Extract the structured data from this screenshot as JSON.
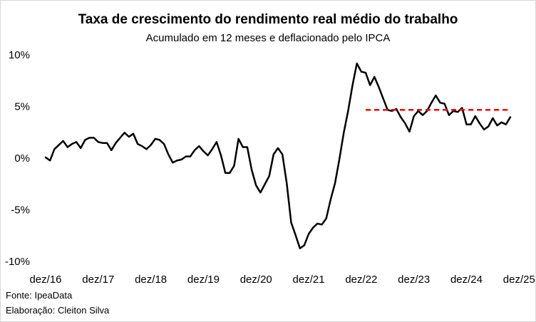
{
  "title": "Taxa de crescimento do rendimento real médio do trabalho",
  "subtitle": "Acumulado em 12 meses e deflacionado pelo IPCA",
  "footer": {
    "source": "Fonte: IpeaData",
    "credit": "Elaboração: Cleiton Silva"
  },
  "chart_data": {
    "type": "line",
    "title": "Taxa de crescimento do rendimento real médio do trabalho",
    "subtitle": "Acumulado em 12 meses e deflacionado pelo IPCA",
    "xlabel": "",
    "ylabel": "",
    "ylim": [
      -10,
      10
    ],
    "yticks": [
      10,
      5,
      0,
      -5,
      -10
    ],
    "ytick_labels": [
      "10%",
      "5%",
      "0%",
      "-5%",
      "-10%"
    ],
    "xtick_labels": [
      "dez/16",
      "dez/17",
      "dez/18",
      "dez/19",
      "dez/20",
      "dez/21",
      "dez/22",
      "dez/23",
      "dez/24",
      "dez/25"
    ],
    "x_start": "dez/16",
    "grid": false,
    "legend": "none",
    "series": [
      {
        "color": "#000000",
        "style": "solid",
        "values": [
          0.0,
          -0.3,
          0.8,
          1.2,
          1.6,
          1.0,
          1.3,
          1.5,
          0.9,
          1.7,
          1.9,
          1.9,
          1.5,
          1.4,
          1.4,
          0.7,
          1.4,
          1.9,
          2.4,
          2.0,
          2.3,
          1.3,
          1.1,
          0.8,
          1.2,
          1.8,
          1.7,
          1.3,
          0.3,
          -0.5,
          -0.3,
          -0.2,
          0.1,
          0.1,
          0.7,
          1.1,
          0.6,
          0.2,
          0.8,
          1.5,
          0.2,
          -1.5,
          -1.5,
          -0.8,
          1.8,
          1.0,
          1.0,
          -1.2,
          -2.7,
          -3.4,
          -2.6,
          -1.8,
          0.3,
          0.9,
          0.3,
          -2.5,
          -6.3,
          -7.5,
          -8.8,
          -8.5,
          -7.4,
          -6.8,
          -6.4,
          -6.5,
          -5.9,
          -4.1,
          -2.5,
          -0.2,
          2.4,
          4.5,
          7.0,
          9.1,
          8.3,
          8.2,
          7.0,
          7.8,
          6.8,
          5.7,
          4.6,
          4.5,
          4.7,
          3.9,
          3.3,
          2.5,
          4.0,
          4.5,
          4.1,
          4.5,
          5.3,
          6.0,
          5.3,
          5.2,
          4.1,
          4.5,
          4.4,
          4.8,
          3.2,
          3.2,
          4.0,
          3.3,
          2.7,
          3.0,
          3.8,
          3.1,
          3.4,
          3.2,
          3.9
        ]
      },
      {
        "color": "#ff0000",
        "style": "dashed",
        "x_range": [
          73,
          106
        ],
        "value": 4.6
      }
    ]
  }
}
